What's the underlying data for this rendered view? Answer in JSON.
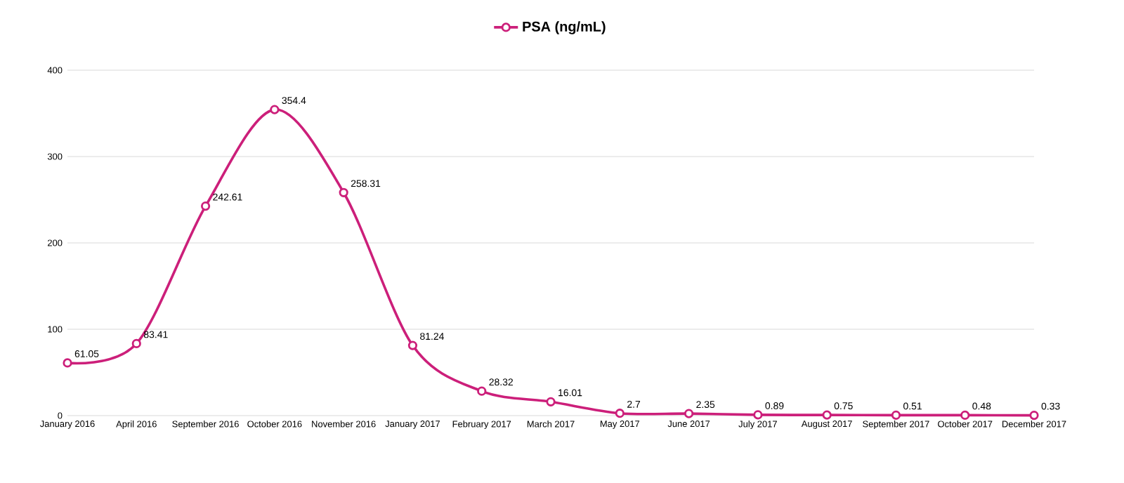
{
  "chart_data": {
    "type": "line",
    "categories": [
      "January 2016",
      "April 2016",
      "September 2016",
      "October 2016",
      "November 2016",
      "January 2017",
      "February 2017",
      "March 2017",
      "May 2017",
      "June 2017",
      "July 2017",
      "August 2017",
      "September 2017",
      "October 2017",
      "December 2017"
    ],
    "series": [
      {
        "name": "PSA (ng/mL)",
        "color": "#cc1f7a",
        "values": [
          61.05,
          83.41,
          242.61,
          354.4,
          258.31,
          81.24,
          28.32,
          16.01,
          2.7,
          2.35,
          0.89,
          0.75,
          0.51,
          0.48,
          0.33
        ]
      }
    ],
    "ylim": [
      0,
      400
    ],
    "yticks": [
      0,
      100,
      200,
      300,
      400
    ],
    "grid": "y",
    "legend": "top",
    "marker": "circle",
    "line_style": "solid",
    "data_labels": true
  }
}
